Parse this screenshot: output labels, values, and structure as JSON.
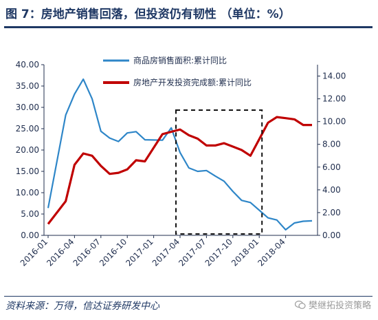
{
  "title": "图 7：房地产销售回落，但投资仍有韧性  （单位：%）",
  "source": "资料来源：万得，信达证券研发中心",
  "watermark": "樊继拓投资策略",
  "chart_data": {
    "type": "line",
    "x": [
      "2016-01",
      "2016-02",
      "2016-03",
      "2016-04",
      "2016-05",
      "2016-06",
      "2016-07",
      "2016-08",
      "2016-09",
      "2016-10",
      "2016-11",
      "2016-12",
      "2017-01",
      "2017-02",
      "2017-03",
      "2017-04",
      "2017-05",
      "2017-06",
      "2017-07",
      "2017-08",
      "2017-09",
      "2017-10",
      "2017-11",
      "2017-12",
      "2018-01",
      "2018-02",
      "2018-03",
      "2018-04",
      "2018-05",
      "2018-06",
      "2018-07"
    ],
    "x_tick_labels": [
      "2016-01",
      "2016-04",
      "2016-07",
      "2016-10",
      "2017-01",
      "2017-04",
      "2017-07",
      "2017-10",
      "2018-01",
      "2018-04"
    ],
    "y_left_ticks": [
      "0.00",
      "5.00",
      "10.00",
      "15.00",
      "20.00",
      "25.00",
      "30.00",
      "35.00",
      "40.00"
    ],
    "y_right_ticks": [
      "0.00",
      "2.00",
      "4.00",
      "6.00",
      "8.00",
      "10.00",
      "12.00",
      "14.00"
    ],
    "ylim_left": [
      0,
      40
    ],
    "ylim_right": [
      0,
      15
    ],
    "grid": false,
    "legend_position": "top-center",
    "series": [
      {
        "name": "商品房销售面积:累计同比",
        "axis": "left",
        "color": "#2e86c8",
        "values": [
          6.4,
          null,
          28.2,
          33.1,
          36.6,
          32.0,
          24.4,
          22.8,
          22.0,
          24.0,
          24.3,
          22.4,
          null,
          22.3,
          25.2,
          19.4,
          15.8,
          15.0,
          15.2,
          13.9,
          12.7,
          10.3,
          8.2,
          7.7,
          null,
          4.1,
          3.6,
          1.3,
          2.9,
          3.3,
          3.4
        ]
      },
      {
        "name": "房地产开发投资完成额:累计同比",
        "axis": "right",
        "color": "#c00000",
        "values": [
          1.0,
          null,
          3.0,
          6.2,
          7.2,
          7.0,
          6.1,
          5.4,
          5.5,
          5.8,
          6.6,
          6.5,
          null,
          8.9,
          9.1,
          9.3,
          8.8,
          8.5,
          7.9,
          7.9,
          8.1,
          7.8,
          7.5,
          7.0,
          null,
          9.9,
          10.4,
          10.3,
          10.2,
          9.7,
          9.7
        ]
      }
    ],
    "annotation": {
      "type": "dashed-box",
      "x_start": "2017-04",
      "x_end": "2018-01"
    }
  }
}
